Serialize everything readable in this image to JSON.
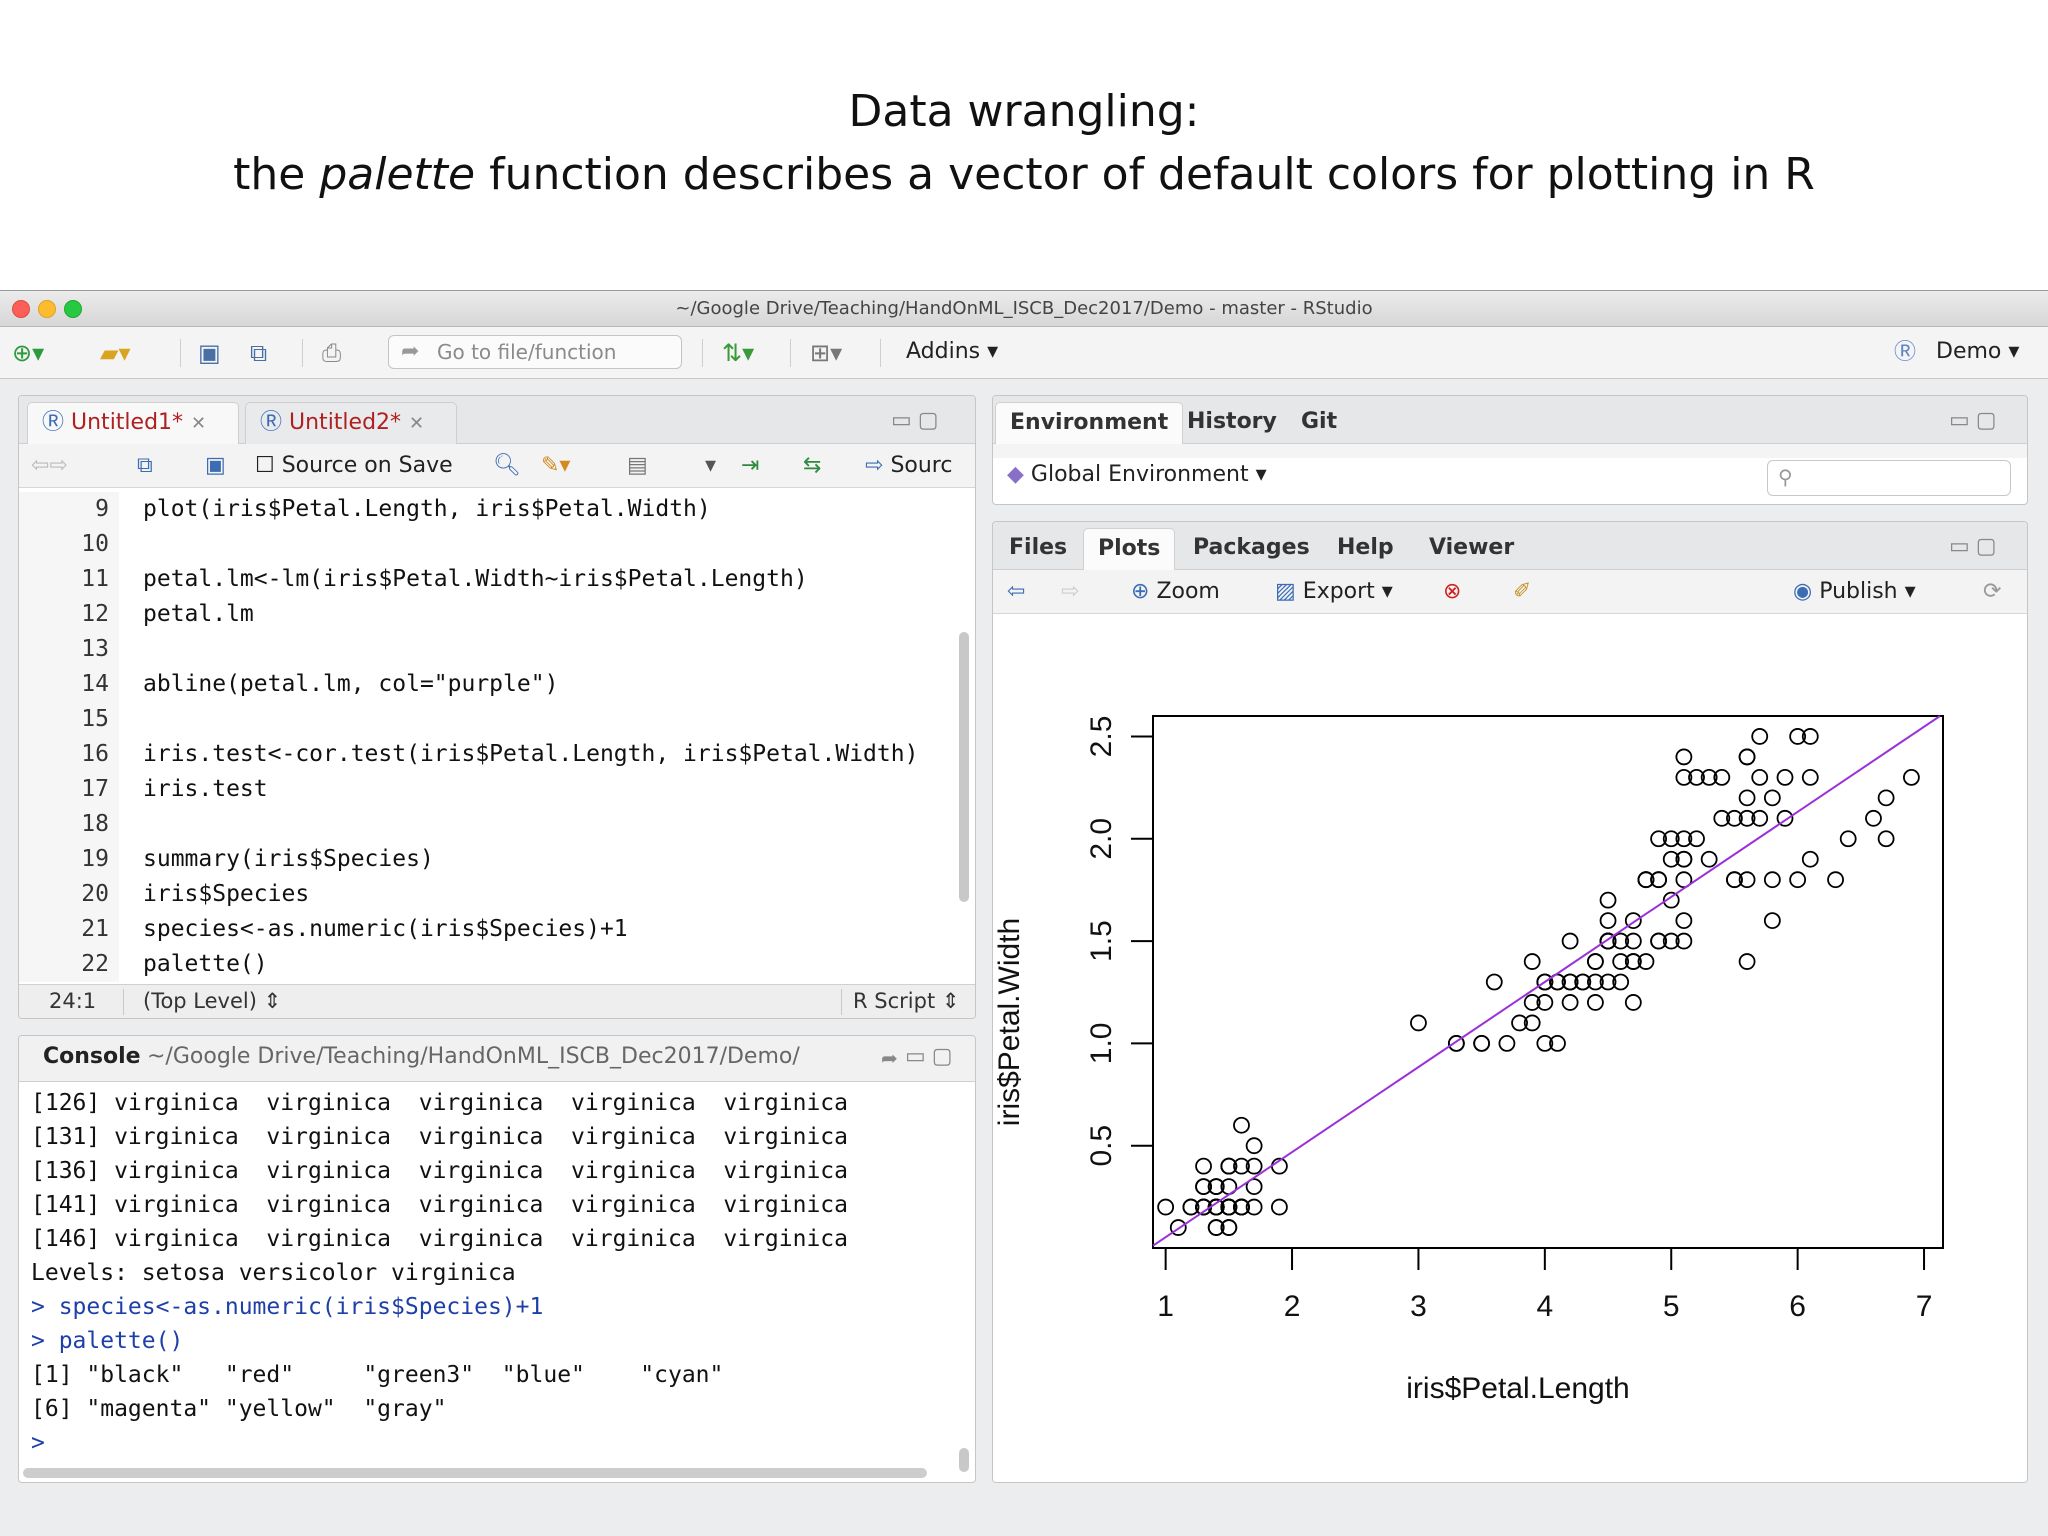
{
  "slide": {
    "title_line1": "Data wrangling:",
    "title_pre": "the ",
    "title_em": "palette",
    "title_post": " function describes a vector of default colors for plotting in R"
  },
  "window": {
    "title": "~/Google Drive/Teaching/HandOnML_ISCB_Dec2017/Demo - master - RStudio"
  },
  "toolbar": {
    "goto_placeholder": "Go to file/function",
    "addins_label": "Addins",
    "project_label": "Demo"
  },
  "editor": {
    "tabs": [
      {
        "label": "Untitled1*"
      },
      {
        "label": "Untitled2*"
      }
    ],
    "source_on_save": "Source on Save",
    "source_label": "Sourc",
    "lines": [
      {
        "n": "9",
        "code": "plot(iris$Petal.Length, iris$Petal.Width)"
      },
      {
        "n": "10",
        "code": ""
      },
      {
        "n": "11",
        "code": "petal.lm<-lm(iris$Petal.Width~iris$Petal.Length)"
      },
      {
        "n": "12",
        "code": "petal.lm"
      },
      {
        "n": "13",
        "code": ""
      },
      {
        "n": "14",
        "code": "abline(petal.lm, col=\"purple\")"
      },
      {
        "n": "15",
        "code": ""
      },
      {
        "n": "16",
        "code": "iris.test<-cor.test(iris$Petal.Length, iris$Petal.Width)"
      },
      {
        "n": "17",
        "code": "iris.test"
      },
      {
        "n": "18",
        "code": ""
      },
      {
        "n": "19",
        "code": "summary(iris$Species)"
      },
      {
        "n": "20",
        "code": "iris$Species"
      },
      {
        "n": "21",
        "code": "species<-as.numeric(iris$Species)+1"
      },
      {
        "n": "22",
        "code": "palette()"
      }
    ],
    "status_pos": "24:1",
    "status_scope": "(Top Level)",
    "status_type": "R Script"
  },
  "console": {
    "title": "Console",
    "path": "~/Google Drive/Teaching/HandOnML_ISCB_Dec2017/Demo/",
    "lines": [
      {
        "text": "[126] virginica  virginica  virginica  virginica  virginica",
        "kind": "out"
      },
      {
        "text": "[131] virginica  virginica  virginica  virginica  virginica",
        "kind": "out"
      },
      {
        "text": "[136] virginica  virginica  virginica  virginica  virginica",
        "kind": "out"
      },
      {
        "text": "[141] virginica  virginica  virginica  virginica  virginica",
        "kind": "out"
      },
      {
        "text": "[146] virginica  virginica  virginica  virginica  virginica",
        "kind": "out"
      },
      {
        "text": "Levels: setosa versicolor virginica",
        "kind": "out"
      },
      {
        "text": "> species<-as.numeric(iris$Species)+1",
        "kind": "cmd"
      },
      {
        "text": "> palette()",
        "kind": "cmd"
      },
      {
        "text": "[1] \"black\"   \"red\"     \"green3\"  \"blue\"    \"cyan\"",
        "kind": "out"
      },
      {
        "text": "[6] \"magenta\" \"yellow\"  \"gray\"",
        "kind": "out"
      },
      {
        "text": "> ",
        "kind": "cmd"
      }
    ]
  },
  "env_pane": {
    "tabs": [
      "Environment",
      "History",
      "Git"
    ],
    "scope": "Global Environment"
  },
  "files_pane": {
    "tabs": [
      "Files",
      "Plots",
      "Packages",
      "Help",
      "Viewer"
    ],
    "zoom": "Zoom",
    "export": "Export",
    "publish": "Publish"
  },
  "chart_data": {
    "type": "scatter",
    "xlabel": "iris$Petal.Length",
    "ylabel": "iris$Petal.Width",
    "xlim": [
      0.9,
      7.15
    ],
    "ylim": [
      0.0,
      2.6
    ],
    "xticks": [
      1,
      2,
      3,
      4,
      5,
      6,
      7
    ],
    "yticks": [
      0.5,
      1.0,
      1.5,
      2.0,
      2.5
    ],
    "ytick_labels": [
      "0.5",
      "1.0",
      "1.5",
      "2.0",
      "2.5"
    ],
    "line_color": "#9b30d9",
    "regression": {
      "intercept": -0.3631,
      "slope": 0.4158
    },
    "points": [
      [
        1.4,
        0.2
      ],
      [
        1.4,
        0.2
      ],
      [
        1.3,
        0.2
      ],
      [
        1.5,
        0.2
      ],
      [
        1.4,
        0.2
      ],
      [
        1.7,
        0.4
      ],
      [
        1.4,
        0.3
      ],
      [
        1.5,
        0.2
      ],
      [
        1.4,
        0.2
      ],
      [
        1.5,
        0.1
      ],
      [
        1.5,
        0.2
      ],
      [
        1.6,
        0.2
      ],
      [
        1.4,
        0.1
      ],
      [
        1.1,
        0.1
      ],
      [
        1.2,
        0.2
      ],
      [
        1.5,
        0.4
      ],
      [
        1.3,
        0.4
      ],
      [
        1.4,
        0.3
      ],
      [
        1.7,
        0.3
      ],
      [
        1.5,
        0.3
      ],
      [
        1.7,
        0.2
      ],
      [
        1.5,
        0.4
      ],
      [
        1.0,
        0.2
      ],
      [
        1.7,
        0.5
      ],
      [
        1.9,
        0.2
      ],
      [
        1.6,
        0.2
      ],
      [
        1.6,
        0.4
      ],
      [
        1.5,
        0.2
      ],
      [
        1.4,
        0.2
      ],
      [
        1.6,
        0.2
      ],
      [
        1.6,
        0.2
      ],
      [
        1.5,
        0.4
      ],
      [
        1.5,
        0.1
      ],
      [
        1.4,
        0.2
      ],
      [
        1.5,
        0.2
      ],
      [
        1.2,
        0.2
      ],
      [
        1.3,
        0.2
      ],
      [
        1.4,
        0.1
      ],
      [
        1.3,
        0.2
      ],
      [
        1.5,
        0.2
      ],
      [
        1.3,
        0.3
      ],
      [
        1.3,
        0.3
      ],
      [
        1.3,
        0.2
      ],
      [
        1.6,
        0.6
      ],
      [
        1.9,
        0.4
      ],
      [
        1.4,
        0.3
      ],
      [
        1.6,
        0.2
      ],
      [
        1.4,
        0.2
      ],
      [
        1.5,
        0.2
      ],
      [
        1.4,
        0.2
      ],
      [
        4.7,
        1.4
      ],
      [
        4.5,
        1.5
      ],
      [
        4.9,
        1.5
      ],
      [
        4.0,
        1.3
      ],
      [
        4.6,
        1.5
      ],
      [
        4.5,
        1.3
      ],
      [
        4.7,
        1.6
      ],
      [
        3.3,
        1.0
      ],
      [
        4.6,
        1.3
      ],
      [
        3.9,
        1.4
      ],
      [
        3.5,
        1.0
      ],
      [
        4.2,
        1.5
      ],
      [
        4.0,
        1.0
      ],
      [
        4.7,
        1.4
      ],
      [
        3.6,
        1.3
      ],
      [
        4.4,
        1.4
      ],
      [
        4.5,
        1.5
      ],
      [
        4.1,
        1.0
      ],
      [
        4.5,
        1.5
      ],
      [
        3.9,
        1.1
      ],
      [
        4.8,
        1.8
      ],
      [
        4.0,
        1.3
      ],
      [
        4.9,
        1.5
      ],
      [
        4.7,
        1.2
      ],
      [
        4.3,
        1.3
      ],
      [
        4.4,
        1.4
      ],
      [
        4.8,
        1.4
      ],
      [
        5.0,
        1.7
      ],
      [
        4.5,
        1.5
      ],
      [
        3.5,
        1.0
      ],
      [
        3.8,
        1.1
      ],
      [
        3.7,
        1.0
      ],
      [
        3.9,
        1.2
      ],
      [
        5.1,
        1.6
      ],
      [
        4.5,
        1.5
      ],
      [
        4.5,
        1.6
      ],
      [
        4.7,
        1.5
      ],
      [
        4.4,
        1.3
      ],
      [
        4.1,
        1.3
      ],
      [
        4.0,
        1.3
      ],
      [
        4.4,
        1.2
      ],
      [
        4.6,
        1.4
      ],
      [
        4.0,
        1.2
      ],
      [
        3.3,
        1.0
      ],
      [
        4.2,
        1.3
      ],
      [
        4.2,
        1.2
      ],
      [
        4.2,
        1.3
      ],
      [
        4.3,
        1.3
      ],
      [
        3.0,
        1.1
      ],
      [
        4.1,
        1.3
      ],
      [
        6.0,
        2.5
      ],
      [
        5.1,
        1.9
      ],
      [
        5.9,
        2.1
      ],
      [
        5.6,
        1.8
      ],
      [
        5.8,
        2.2
      ],
      [
        6.6,
        2.1
      ],
      [
        4.5,
        1.7
      ],
      [
        6.3,
        1.8
      ],
      [
        5.8,
        1.8
      ],
      [
        6.1,
        2.5
      ],
      [
        5.1,
        2.0
      ],
      [
        5.3,
        1.9
      ],
      [
        5.5,
        2.1
      ],
      [
        5.0,
        2.0
      ],
      [
        5.1,
        2.4
      ],
      [
        5.3,
        2.3
      ],
      [
        5.5,
        1.8
      ],
      [
        6.7,
        2.2
      ],
      [
        6.9,
        2.3
      ],
      [
        5.0,
        1.5
      ],
      [
        5.7,
        2.3
      ],
      [
        4.9,
        2.0
      ],
      [
        6.7,
        2.0
      ],
      [
        4.9,
        1.8
      ],
      [
        5.7,
        2.1
      ],
      [
        6.0,
        1.8
      ],
      [
        4.8,
        1.8
      ],
      [
        4.9,
        1.8
      ],
      [
        5.6,
        2.1
      ],
      [
        5.8,
        1.6
      ],
      [
        6.1,
        1.9
      ],
      [
        6.4,
        2.0
      ],
      [
        5.6,
        2.2
      ],
      [
        5.1,
        1.5
      ],
      [
        5.6,
        1.4
      ],
      [
        6.1,
        2.3
      ],
      [
        5.6,
        2.4
      ],
      [
        5.5,
        1.8
      ],
      [
        4.8,
        1.8
      ],
      [
        5.4,
        2.1
      ],
      [
        5.6,
        2.4
      ],
      [
        5.1,
        2.3
      ],
      [
        5.1,
        1.9
      ],
      [
        5.9,
        2.3
      ],
      [
        5.7,
        2.5
      ],
      [
        5.2,
        2.3
      ],
      [
        5.0,
        1.9
      ],
      [
        5.2,
        2.0
      ],
      [
        5.4,
        2.3
      ],
      [
        5.1,
        1.8
      ]
    ]
  }
}
